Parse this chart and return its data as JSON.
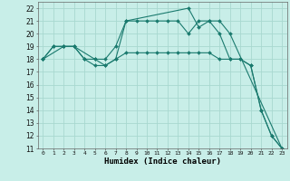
{
  "title": "",
  "xlabel": "Humidex (Indice chaleur)",
  "bg_color": "#c8eee8",
  "grid_color": "#a8d8d0",
  "line_color": "#1a7a6e",
  "xlim": [
    -0.5,
    23.5
  ],
  "ylim": [
    11,
    22.5
  ],
  "xticks": [
    0,
    1,
    2,
    3,
    4,
    5,
    6,
    7,
    8,
    9,
    10,
    11,
    12,
    13,
    14,
    15,
    16,
    17,
    18,
    19,
    20,
    21,
    22,
    23
  ],
  "yticks": [
    11,
    12,
    13,
    14,
    15,
    16,
    17,
    18,
    19,
    20,
    21,
    22
  ],
  "line1_x": [
    0,
    1,
    2,
    3,
    4,
    5,
    6,
    7,
    8,
    9,
    10,
    11,
    12,
    13,
    14,
    15,
    16,
    17,
    18,
    19,
    20,
    21,
    22,
    23
  ],
  "line1_y": [
    18,
    19,
    19,
    19,
    18,
    18,
    18,
    19,
    21,
    21,
    21,
    21,
    21,
    21,
    20,
    21,
    21,
    20,
    18,
    18,
    17.5,
    14,
    12,
    11
  ],
  "line2_x": [
    0,
    1,
    2,
    3,
    4,
    5,
    6,
    7,
    8,
    9,
    10,
    11,
    12,
    13,
    14,
    15,
    16,
    17,
    18,
    19,
    20,
    21,
    22,
    23
  ],
  "line2_y": [
    18,
    19,
    19,
    19,
    18,
    17.5,
    17.5,
    18,
    18.5,
    18.5,
    18.5,
    18.5,
    18.5,
    18.5,
    18.5,
    18.5,
    18.5,
    18,
    18,
    18,
    17.5,
    14,
    12,
    11
  ],
  "line3_x": [
    0,
    2,
    3,
    5,
    6,
    7,
    8,
    14,
    15,
    16,
    17,
    18,
    23
  ],
  "line3_y": [
    18,
    19,
    19,
    18,
    17.5,
    18,
    21,
    22,
    20.5,
    21,
    21,
    20,
    11
  ]
}
